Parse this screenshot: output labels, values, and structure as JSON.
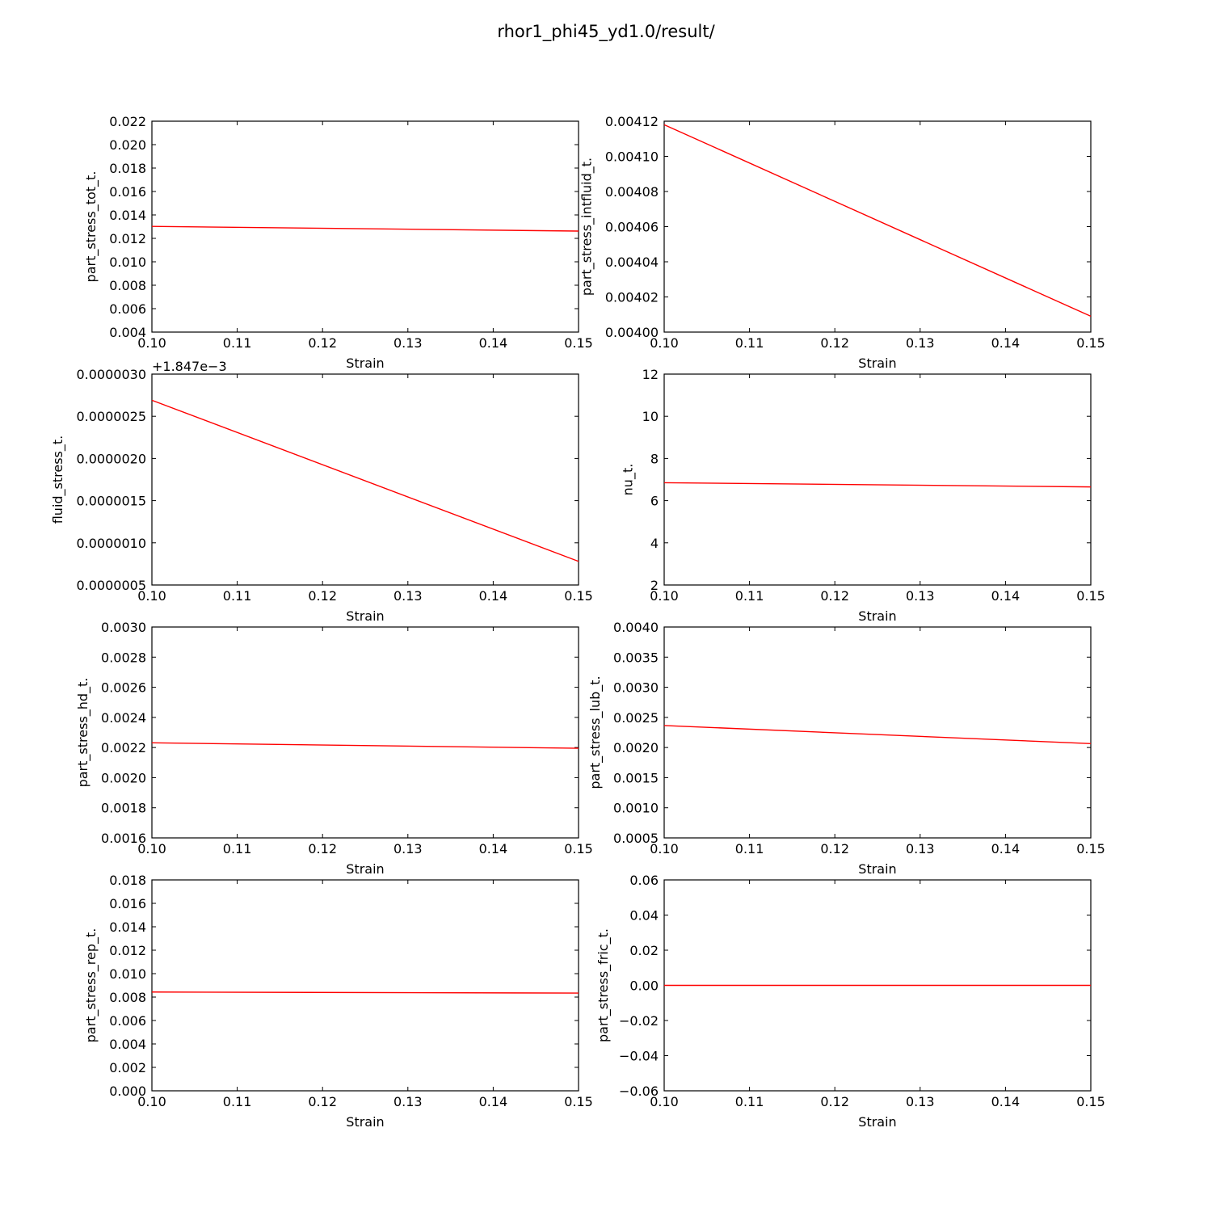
{
  "figure": {
    "title": "rhor1_phi45_yd1.0/result/"
  },
  "chart_data": [
    {
      "type": "line",
      "xlabel": "Strain",
      "ylabel": "part_stress_tot_t.",
      "xlim": [
        0.1,
        0.15
      ],
      "ylim": [
        0.004,
        0.022
      ],
      "xticks": [
        "0.10",
        "0.11",
        "0.12",
        "0.13",
        "0.14",
        "0.15"
      ],
      "yticks": [
        "0.004",
        "0.006",
        "0.008",
        "0.010",
        "0.012",
        "0.014",
        "0.016",
        "0.018",
        "0.020",
        "0.022"
      ],
      "series": [
        {
          "color": "#ff0000",
          "x": [
            0.1,
            0.15
          ],
          "y": [
            0.01302,
            0.01262
          ]
        }
      ]
    },
    {
      "type": "line",
      "xlabel": "Strain",
      "ylabel": "part_stress_intfluid_t.",
      "xlim": [
        0.1,
        0.15
      ],
      "ylim": [
        0.004,
        0.00412
      ],
      "xticks": [
        "0.10",
        "0.11",
        "0.12",
        "0.13",
        "0.14",
        "0.15"
      ],
      "yticks": [
        "0.00400",
        "0.00402",
        "0.00404",
        "0.00406",
        "0.00408",
        "0.00410",
        "0.00412"
      ],
      "series": [
        {
          "color": "#ff0000",
          "x": [
            0.1,
            0.15
          ],
          "y": [
            0.004118,
            0.004009
          ]
        }
      ]
    },
    {
      "type": "line",
      "xlabel": "Strain",
      "ylabel": "fluid_stress_t.",
      "offset_text": "+1.847e−3",
      "xlim": [
        0.1,
        0.15
      ],
      "ylim": [
        5e-07,
        3e-06
      ],
      "xticks": [
        "0.10",
        "0.11",
        "0.12",
        "0.13",
        "0.14",
        "0.15"
      ],
      "yticks": [
        "0.0000005",
        "0.0000010",
        "0.0000015",
        "0.0000020",
        "0.0000025",
        "0.0000030"
      ],
      "series": [
        {
          "color": "#ff0000",
          "x": [
            0.1,
            0.15
          ],
          "y": [
            2.69e-06,
            7.8e-07
          ]
        }
      ]
    },
    {
      "type": "line",
      "xlabel": "Strain",
      "ylabel": "nu_t.",
      "xlim": [
        0.1,
        0.15
      ],
      "ylim": [
        2,
        12
      ],
      "xticks": [
        "0.10",
        "0.11",
        "0.12",
        "0.13",
        "0.14",
        "0.15"
      ],
      "yticks": [
        "2",
        "4",
        "6",
        "8",
        "10",
        "12"
      ],
      "series": [
        {
          "color": "#ff0000",
          "x": [
            0.1,
            0.15
          ],
          "y": [
            6.85,
            6.65
          ]
        }
      ]
    },
    {
      "type": "line",
      "xlabel": "Strain",
      "ylabel": "part_stress_hd_t.",
      "xlim": [
        0.1,
        0.15
      ],
      "ylim": [
        0.0016,
        0.003
      ],
      "xticks": [
        "0.10",
        "0.11",
        "0.12",
        "0.13",
        "0.14",
        "0.15"
      ],
      "yticks": [
        "0.0016",
        "0.0018",
        "0.0020",
        "0.0022",
        "0.0024",
        "0.0026",
        "0.0028",
        "0.0030"
      ],
      "series": [
        {
          "color": "#ff0000",
          "x": [
            0.1,
            0.15
          ],
          "y": [
            0.002231,
            0.002195
          ]
        }
      ]
    },
    {
      "type": "line",
      "xlabel": "Strain",
      "ylabel": "part_stress_lub_t.",
      "xlim": [
        0.1,
        0.15
      ],
      "ylim": [
        0.0005,
        0.004
      ],
      "xticks": [
        "0.10",
        "0.11",
        "0.12",
        "0.13",
        "0.14",
        "0.15"
      ],
      "yticks": [
        "0.0005",
        "0.0010",
        "0.0015",
        "0.0020",
        "0.0025",
        "0.0030",
        "0.0035",
        "0.0040"
      ],
      "series": [
        {
          "color": "#ff0000",
          "x": [
            0.1,
            0.15
          ],
          "y": [
            0.002365,
            0.002065
          ]
        }
      ]
    },
    {
      "type": "line",
      "xlabel": "Strain",
      "ylabel": "part_stress_rep_t.",
      "xlim": [
        0.1,
        0.15
      ],
      "ylim": [
        0.0,
        0.018
      ],
      "xticks": [
        "0.10",
        "0.11",
        "0.12",
        "0.13",
        "0.14",
        "0.15"
      ],
      "yticks": [
        "0.000",
        "0.002",
        "0.004",
        "0.006",
        "0.008",
        "0.010",
        "0.012",
        "0.014",
        "0.016",
        "0.018"
      ],
      "series": [
        {
          "color": "#ff0000",
          "x": [
            0.1,
            0.15
          ],
          "y": [
            0.00843,
            0.00834
          ]
        }
      ]
    },
    {
      "type": "line",
      "xlabel": "Strain",
      "ylabel": "part_stress_fric_t.",
      "xlim": [
        0.1,
        0.15
      ],
      "ylim": [
        -0.06,
        0.06
      ],
      "xticks": [
        "0.10",
        "0.11",
        "0.12",
        "0.13",
        "0.14",
        "0.15"
      ],
      "yticks": [
        "−0.06",
        "−0.04",
        "−0.02",
        "0.00",
        "0.02",
        "0.04",
        "0.06"
      ],
      "series": [
        {
          "color": "#ff0000",
          "x": [
            0.1,
            0.15
          ],
          "y": [
            0.0,
            0.0
          ]
        }
      ]
    }
  ]
}
